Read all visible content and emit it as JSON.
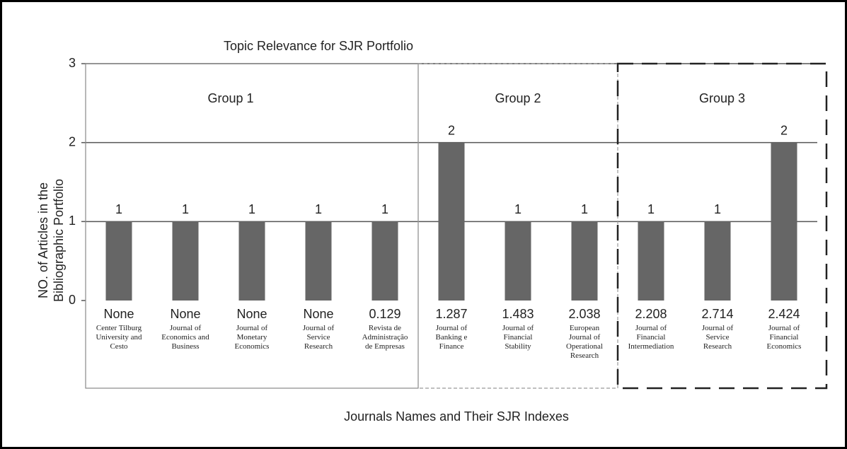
{
  "chart_data": {
    "type": "bar",
    "title": "Topic Relevance for SJR Portfolio",
    "ylabel": [
      "NO. of Articles in the",
      "Bibliographic Portfolio"
    ],
    "xlabel": "Journals Names and Their SJR Indexes",
    "categories": [
      "Center Tilburg University and Cesto",
      "Journal of Economics and Business",
      "Journal of Monetary Economics",
      "Journal of Service Research",
      "Revista de Administração de Empresas",
      "Journal of Banking e Finance",
      "Journal of Financial Stability",
      "European Journal of Operational Research",
      "Journal of Financial Intermediation",
      "Journal of Service Research",
      "Journal of Financial Economics"
    ],
    "sjr_indexes": [
      "None",
      "None",
      "None",
      "None",
      "0.129",
      "1.287",
      "1.483",
      "2.038",
      "2.208",
      "2.714",
      "2.424"
    ],
    "values": [
      1,
      1,
      1,
      1,
      1,
      2,
      1,
      1,
      1,
      1,
      2
    ],
    "color": "#666666",
    "groups": [
      {
        "name": "Group 1",
        "count": 5
      },
      {
        "name": "Group 2",
        "count": 3
      },
      {
        "name": "Group 3",
        "count": 3
      }
    ],
    "ylim": [
      0,
      3
    ],
    "yticks": [
      0,
      1,
      2,
      3
    ],
    "grid": true
  }
}
